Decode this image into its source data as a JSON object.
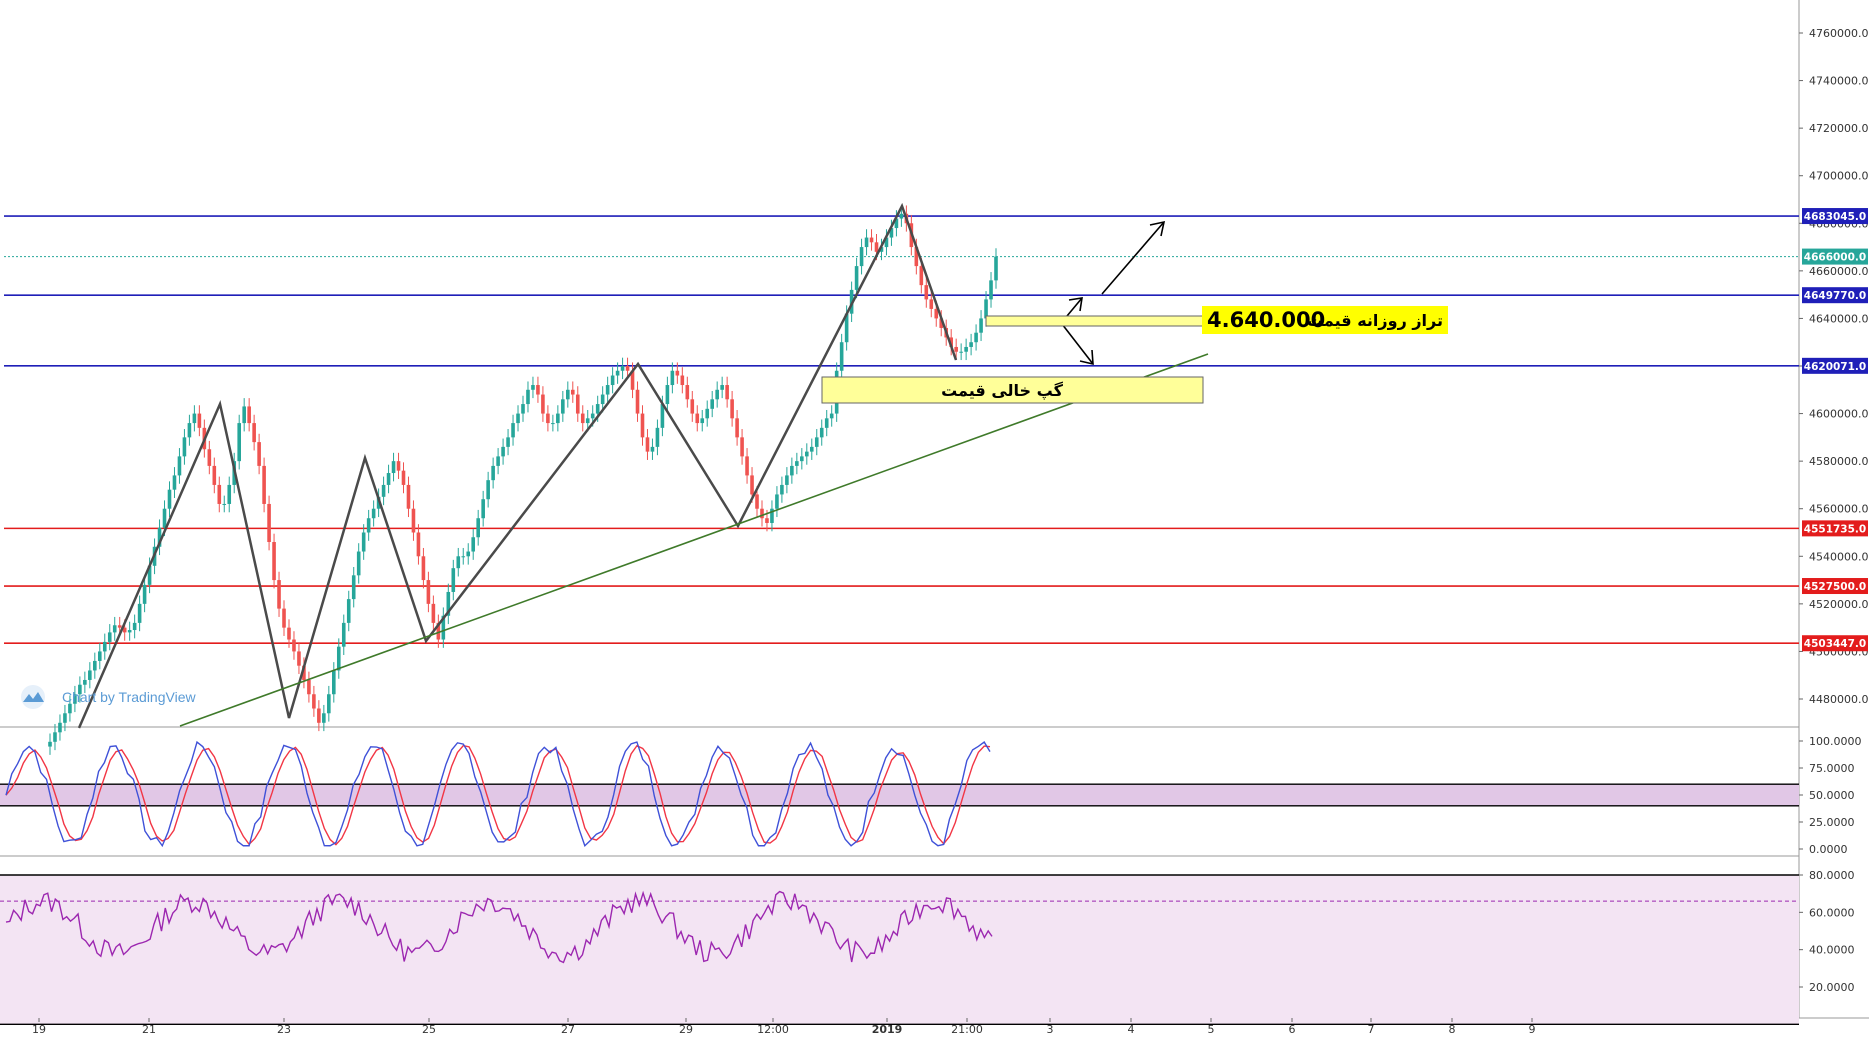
{
  "chart_data": {
    "type": "candlestick",
    "watermark": "Chart by TradingView",
    "price_axis": {
      "ylim": [
        4460000,
        4770000
      ],
      "ticks": [
        "4760000.0",
        "4740000.0",
        "4720000.0",
        "4700000.0",
        "4680000.0",
        "4660000.0",
        "4640000.0",
        "4620000.0",
        "4600000.0",
        "4580000.0",
        "4560000.0",
        "4540000.0",
        "4520000.0",
        "4500000.0",
        "4480000.0"
      ]
    },
    "time_axis": {
      "labels": [
        "19",
        "21",
        "23",
        "25",
        "27",
        "29",
        "12:00",
        "2019",
        "21:00",
        "3",
        "4",
        "5",
        "6",
        "7",
        "8",
        "9"
      ],
      "bold_label": "2019"
    },
    "levels": [
      {
        "label": "4683045.0",
        "value": 4683045,
        "color": "#1f1fb8"
      },
      {
        "label": "4666000.0",
        "value": 4666000,
        "color": "#26a69a",
        "dotted": true
      },
      {
        "label": "4649770.0",
        "value": 4649770,
        "color": "#1f1fb8"
      },
      {
        "label": "4620071.0",
        "value": 4620071,
        "color": "#1f1fb8"
      },
      {
        "label": "4551735.0",
        "value": 4551735,
        "color": "#e31c1c"
      },
      {
        "label": "4527500.0",
        "value": 4527500,
        "color": "#e31c1c"
      },
      {
        "label": "4503447.0",
        "value": 4503447,
        "color": "#e31c1c"
      }
    ],
    "candles_close": [
      4462000,
      4466000,
      4470000,
      4474000,
      4478000,
      4482000,
      4486000,
      4488000,
      4492000,
      4496000,
      4500000,
      4504000,
      4508000,
      4511000,
      4510000,
      4508000,
      4509000,
      4512000,
      4520000,
      4528000,
      4536000,
      4544000,
      4552000,
      4560000,
      4568000,
      4574000,
      4582000,
      4590000,
      4596000,
      4600000,
      4594000,
      4585000,
      4578000,
      4570000,
      4562000,
      4562000,
      4570000,
      4580000,
      4596000,
      4603000,
      4596000,
      4588000,
      4578000,
      4562000,
      4546000,
      4530000,
      4518000,
      4510000,
      4505000,
      4500000,
      4494000,
      4488000,
      4482000,
      4476000,
      4470000,
      4474000,
      4482000,
      4492000,
      4502000,
      4512000,
      4522000,
      4532000,
      4542000,
      4550000,
      4556000,
      4560000,
      4565000,
      4570000,
      4575000,
      4580000,
      4576000,
      4570000,
      4560000,
      4550000,
      4540000,
      4530000,
      4520000,
      4512000,
      4505000,
      4515000,
      4525000,
      4535000,
      4540000,
      4540000,
      4542000,
      4548000,
      4556000,
      4564000,
      4572000,
      4578000,
      4582000,
      4586000,
      4590000,
      4596000,
      4600000,
      4604000,
      4610000,
      4612000,
      4608000,
      4600000,
      4596000,
      4596000,
      4600000,
      4606000,
      4610000,
      4608000,
      4600000,
      4596000,
      4598000,
      4600000,
      4604000,
      4608000,
      4612000,
      4616000,
      4618000,
      4620000,
      4618000,
      4610000,
      4600000,
      4590000,
      4584000,
      4586000,
      4594000,
      4604000,
      4612000,
      4618000,
      4616000,
      4612000,
      4606000,
      4600000,
      4596000,
      4598000,
      4602000,
      4606000,
      4610000,
      4612000,
      4606000,
      4598000,
      4590000,
      4582000,
      4574000,
      4566000,
      4560000,
      4556000,
      4554000,
      4560000,
      4566000,
      4570000,
      4574000,
      4578000,
      4580000,
      4582000,
      4584000,
      4586000,
      4590000,
      4594000,
      4598000,
      4600000,
      4618000,
      4630000,
      4642000,
      4652000,
      4662000,
      4670000,
      4674000,
      4672000,
      4668000,
      4670000,
      4674000,
      4678000,
      4682000,
      4684000,
      4680000,
      4670000,
      4662000,
      4654000,
      4648000,
      4644000,
      4640000,
      4636000,
      4632000,
      4628000,
      4626000,
      4626000,
      4628000,
      4630000,
      4634000,
      4640000,
      4648000,
      4656000,
      4666000
    ],
    "indicator1": {
      "yticks": [
        "100.0000",
        "75.0000",
        "50.0000",
        "25.0000",
        "0.0000"
      ],
      "ylim": [
        0,
        100
      ],
      "band": [
        40,
        60
      ]
    },
    "indicator2": {
      "yticks": [
        "80.0000",
        "60.0000",
        "40.0000",
        "20.0000"
      ],
      "ylim": [
        0,
        100
      ],
      "levels": [
        80,
        66,
        0
      ]
    },
    "annotations": {
      "daily_level_value": "4.640.000",
      "daily_level_label": "تراز روزانه قیمت",
      "gap_label": "گپ خالی قیمت"
    }
  }
}
